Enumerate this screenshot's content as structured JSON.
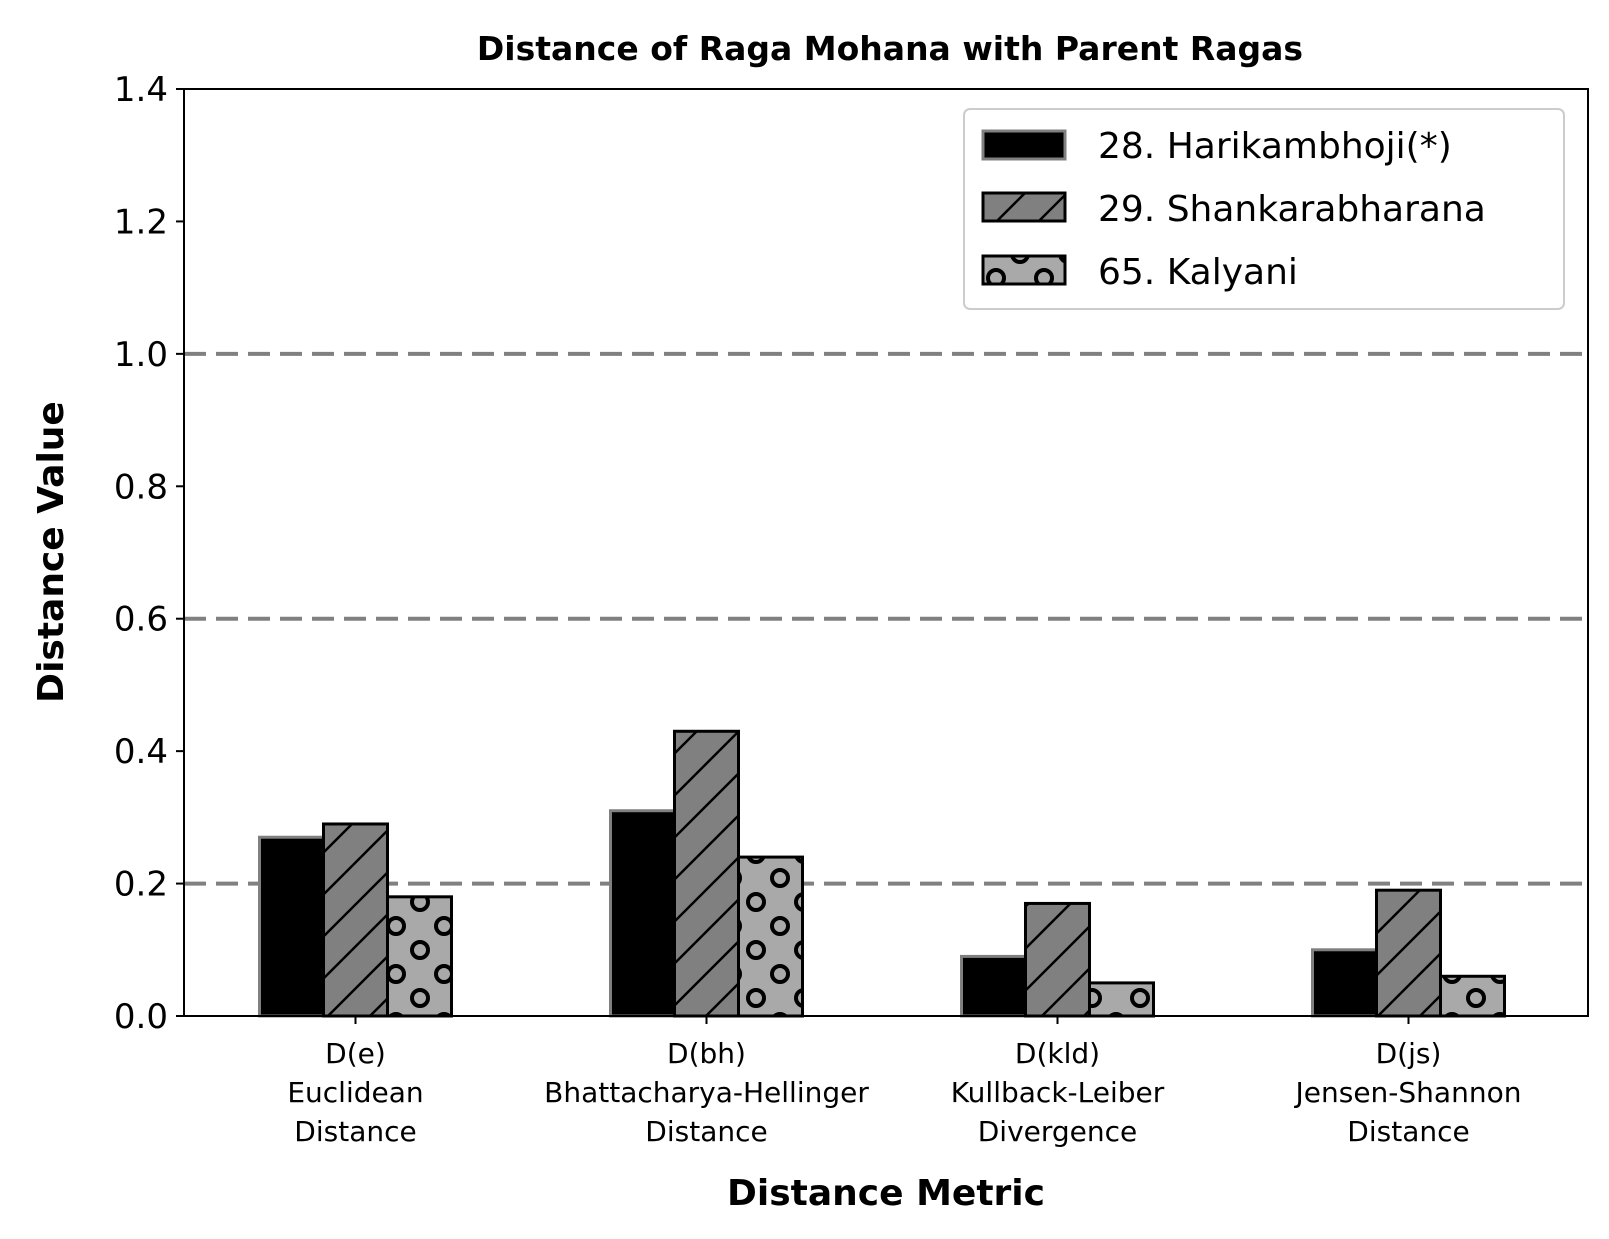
{
  "chart_data": {
    "type": "bar",
    "title": "Distance of Raga Mohana with Parent Ragas",
    "xlabel": "Distance Metric",
    "ylabel": "Distance Value",
    "ylim": [
      0,
      1.4
    ],
    "yticks": [
      "0.0",
      "0.2",
      "0.4",
      "0.6",
      "0.8",
      "1.0",
      "1.2",
      "1.4"
    ],
    "reference_lines": [
      0.2,
      0.6,
      1.0
    ],
    "legend_position": "top-right",
    "categories": [
      [
        "D(e)",
        "Euclidean",
        "Distance"
      ],
      [
        "D(bh)",
        "Bhattacharya-Hellinger",
        "Distance"
      ],
      [
        "D(kld)",
        "Kullback-Leiber",
        "Divergence"
      ],
      [
        "D(js)",
        "Jensen-Shannon",
        "Distance"
      ]
    ],
    "series": [
      {
        "name": "28. Harikambhoji(*)",
        "values": [
          0.27,
          0.31,
          0.09,
          0.1
        ],
        "color": "#000000",
        "pattern": "solid"
      },
      {
        "name": "29. Shankarabharana",
        "values": [
          0.29,
          0.43,
          0.17,
          0.19
        ],
        "color": "#808080",
        "pattern": "hatch"
      },
      {
        "name": "65. Kalyani",
        "values": [
          0.18,
          0.24,
          0.05,
          0.06
        ],
        "color": "#a9a9a9",
        "pattern": "circles"
      }
    ]
  }
}
